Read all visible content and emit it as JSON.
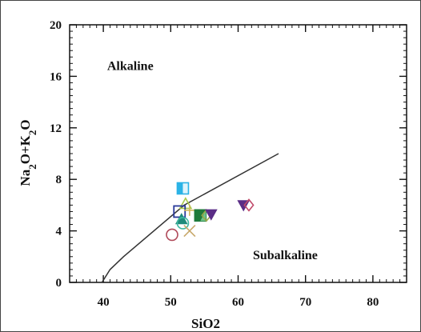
{
  "chart_data": {
    "type": "scatter",
    "title": "",
    "xlabel": "SiO2",
    "ylabel_parts": [
      {
        "t": "N",
        "sub": false
      },
      {
        "t": "a",
        "sub": false
      },
      {
        "t": "2",
        "sub": true
      },
      {
        "t": "O+K",
        "sub": false
      },
      {
        "t": "2",
        "sub": true
      },
      {
        "t": "O",
        "sub": false
      }
    ],
    "xlim": [
      35,
      85
    ],
    "ylim": [
      0,
      20
    ],
    "xticks": [
      40,
      50,
      60,
      70,
      80
    ],
    "yticks": [
      0,
      4,
      8,
      12,
      16,
      20
    ],
    "x_minor_step": 1,
    "y_minor_step": 0.5,
    "grid": false,
    "region_labels": [
      {
        "text": "Alkaline",
        "x": 44,
        "y": 16.5
      },
      {
        "text": "Subalkaline",
        "x": 67,
        "y": 1.8
      }
    ],
    "boundary_line": {
      "x": [
        39.8,
        41.0,
        43.0,
        52.0,
        66.0
      ],
      "y": [
        0.0,
        1.0,
        2.0,
        6.0,
        10.0
      ],
      "color": "#333333"
    },
    "points": [
      {
        "x": 51.8,
        "y": 7.3,
        "marker": "half-square",
        "color": "#2bb3e6"
      },
      {
        "x": 52.2,
        "y": 6.1,
        "marker": "triangle-open",
        "color": "#a8c84a"
      },
      {
        "x": 51.3,
        "y": 5.5,
        "marker": "square-open",
        "color": "#2a3a9a"
      },
      {
        "x": 52.8,
        "y": 5.6,
        "marker": "plus",
        "color": "#d4b85c"
      },
      {
        "x": 51.6,
        "y": 4.9,
        "marker": "triangle-filled",
        "color": "#1f8a7a"
      },
      {
        "x": 51.8,
        "y": 4.6,
        "marker": "circle-open",
        "color": "#3fb8a0"
      },
      {
        "x": 54.4,
        "y": 5.2,
        "marker": "half-square-dark",
        "color": "#1e7a3a"
      },
      {
        "x": 55.3,
        "y": 5.2,
        "marker": "diamond-open",
        "color": "#9aa84a"
      },
      {
        "x": 56.0,
        "y": 5.3,
        "marker": "triangle-down-filled",
        "color": "#5a2d86"
      },
      {
        "x": 52.8,
        "y": 4.0,
        "marker": "cross",
        "color": "#c8a86a"
      },
      {
        "x": 50.2,
        "y": 3.7,
        "marker": "circle-open",
        "color": "#b04a5a"
      },
      {
        "x": 60.8,
        "y": 6.0,
        "marker": "triangle-down-filled",
        "color": "#5a2d86"
      },
      {
        "x": 61.6,
        "y": 6.0,
        "marker": "diamond-open",
        "color": "#c04a6a"
      }
    ]
  }
}
